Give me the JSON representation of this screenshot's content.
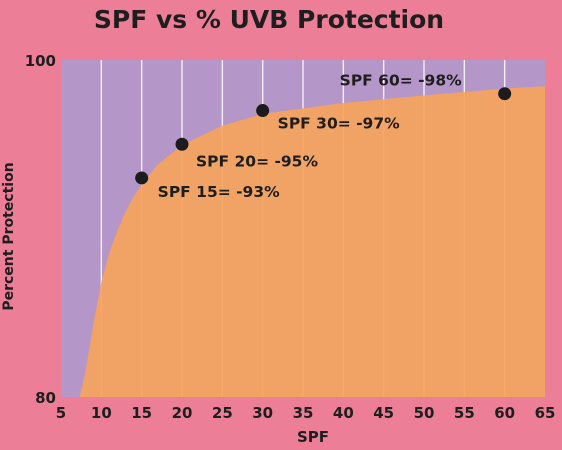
{
  "chart_data": {
    "type": "area",
    "title": "SPF vs % UVB Protection",
    "xlabel": "SPF",
    "ylabel": "Percent Protection",
    "xlim": [
      5,
      65
    ],
    "ylim": [
      80,
      100
    ],
    "x_ticks": [
      "5",
      "10",
      "15",
      "20",
      "25",
      "30",
      "35",
      "40",
      "45",
      "50",
      "55",
      "60",
      "65"
    ],
    "y_ticks": [
      "80",
      "100"
    ],
    "grid": true,
    "curve": {
      "x": [
        7.3,
        8,
        9,
        10,
        11,
        12,
        13,
        14,
        15,
        17,
        20,
        25,
        30,
        40,
        50,
        60,
        65
      ],
      "y": [
        80.0,
        81.4,
        84.3,
        86.8,
        88.6,
        89.9,
        91.0,
        91.9,
        92.6,
        93.8,
        94.95,
        96.1,
        96.8,
        97.45,
        97.9,
        98.3,
        98.45
      ]
    },
    "points": [
      {
        "x": 15,
        "y": 93,
        "label": "SPF 15= -93%"
      },
      {
        "x": 20,
        "y": 95,
        "label": "SPF 20= -95%"
      },
      {
        "x": 30,
        "y": 97,
        "label": "SPF 30= -97%"
      },
      {
        "x": 60,
        "y": 98,
        "label": "SPF 60= -98%"
      }
    ],
    "colors": {
      "background": "#ec7f97",
      "plot_background": "#b596c9",
      "area_fill": "#f6a35c",
      "grid": "#ffffff",
      "marker": "#1c1c1c",
      "text": "#1e1e1e"
    }
  }
}
